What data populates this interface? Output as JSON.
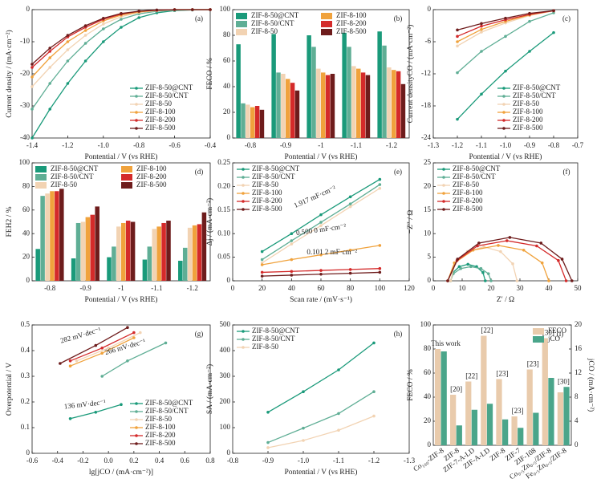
{
  "chart_data": [
    {
      "type": "line",
      "label": "(a)",
      "xlabel": "Pontential / V (vs RHE)",
      "ylabel": "Current density / (mA·cm⁻²)",
      "xlim": [
        -1.4,
        -0.4
      ],
      "xticks": [
        -1.4,
        -1.2,
        {
          "value": -1,
          "label": "-1.0"
        },
        -0.8,
        -0.6,
        -0.4
      ],
      "ylim": [
        -40,
        0
      ],
      "yticks": [
        -40,
        -30,
        -20,
        -10,
        0
      ],
      "legend": "lower right",
      "x": [
        -1.4,
        -1.3,
        -1.2,
        -1.1,
        -1.0,
        -0.9,
        -0.8,
        -0.7,
        -0.6,
        -0.5,
        -0.4
      ],
      "series": [
        {
          "name": "ZIF-8-50@CNT",
          "color": "#1a9a7a",
          "values": [
            -40,
            -31,
            -23,
            -16,
            -10,
            -5.5,
            -2.5,
            -1,
            -0.3,
            -0.1,
            0
          ]
        },
        {
          "name": "ZIF-8-50/CNT",
          "color": "#5fae95",
          "values": [
            -31,
            -23,
            -16,
            -10.5,
            -6,
            -3,
            -1.3,
            -0.5,
            -0.2,
            0,
            0
          ]
        },
        {
          "name": "ZIF-8-50",
          "color": "#f2d3b3",
          "values": [
            -24,
            -18,
            -12.5,
            -8,
            -4.5,
            -2.2,
            -0.9,
            -0.3,
            -0.1,
            0,
            0
          ]
        },
        {
          "name": "ZIF-8-100",
          "color": "#f0a23c",
          "values": [
            -21,
            -15,
            -10,
            -6.5,
            -3.5,
            -1.7,
            -0.7,
            -0.2,
            0,
            0,
            0
          ]
        },
        {
          "name": "ZIF-8-200",
          "color": "#d42a2a",
          "values": [
            -18,
            -13,
            -8.5,
            -5.5,
            -3,
            -1.4,
            -0.5,
            -0.2,
            0,
            0,
            0
          ]
        },
        {
          "name": "ZIF-8-500",
          "color": "#6e1c1c",
          "values": [
            -17,
            -12,
            -8,
            -5,
            -2.7,
            -1.2,
            -0.5,
            -0.1,
            0,
            0,
            0
          ]
        }
      ]
    },
    {
      "type": "bar",
      "label": "(b)",
      "xlabel": "Pontential / V (vs RHE)",
      "ylabel": "FECO / %",
      "categories": [
        "-0.8",
        "-0.9",
        "-1",
        "-1.1",
        "-1.2"
      ],
      "ylim": [
        0,
        100
      ],
      "yticks": [
        0,
        20,
        40,
        60,
        80,
        100
      ],
      "legend": "upper center",
      "legend_columns": 2,
      "series": [
        {
          "name": "ZIF-8-50@CNT",
          "color": "#1a9a7a",
          "values": [
            73,
            81,
            80,
            82,
            83
          ]
        },
        {
          "name": "ZIF-8-50/CNT",
          "color": "#5fae95",
          "values": [
            27,
            51,
            71,
            71,
            72
          ]
        },
        {
          "name": "ZIF-8-50",
          "color": "#f2d3b3",
          "values": [
            26,
            50,
            54,
            56,
            55
          ]
        },
        {
          "name": "ZIF-8-100",
          "color": "#f0a23c",
          "values": [
            24,
            46,
            51,
            54,
            53
          ]
        },
        {
          "name": "ZIF-8-200",
          "color": "#d42a2a",
          "values": [
            25,
            43,
            49,
            51,
            52
          ]
        },
        {
          "name": "ZIF-8-500",
          "color": "#6e1c1c",
          "values": [
            22,
            37,
            50,
            49,
            42
          ]
        }
      ]
    },
    {
      "type": "line",
      "label": "(c)",
      "xlabel": "Pontential / V (vs RHE)",
      "ylabel": "Current densityCO / (mA·cm⁻²)",
      "xlim": [
        -1.3,
        -0.7
      ],
      "xticks": [
        -1.3,
        -1.2,
        -1.1,
        {
          "value": -1,
          "label": "-1.0"
        },
        -0.9,
        -0.8,
        -0.7
      ],
      "ylim": [
        -24,
        0
      ],
      "yticks": [
        -24,
        -18,
        -12,
        -6,
        0
      ],
      "legend": "lower right",
      "x": [
        -1.2,
        -1.1,
        -1.0,
        -0.9,
        -0.8
      ],
      "series": [
        {
          "name": "ZIF-8-50@CNT",
          "color": "#1a9a7a",
          "values": [
            -20.5,
            -15.8,
            -11.5,
            -7.8,
            -4.3
          ]
        },
        {
          "name": "ZIF-8-50/CNT",
          "color": "#5fae95",
          "values": [
            -11.8,
            -7.8,
            -5,
            -2.2,
            -0.6
          ]
        },
        {
          "name": "ZIF-8-50",
          "color": "#f2d3b3",
          "values": [
            -6.8,
            -4.2,
            -2.5,
            -1.1,
            -0.2
          ]
        },
        {
          "name": "ZIF-8-100",
          "color": "#f0a23c",
          "values": [
            -6,
            -3.7,
            -2.2,
            -1,
            -0.2
          ]
        },
        {
          "name": "ZIF-8-200",
          "color": "#d42a2a",
          "values": [
            -5,
            -3.1,
            -1.9,
            -0.9,
            -0.2
          ]
        },
        {
          "name": "ZIF-8-500",
          "color": "#6e1c1c",
          "values": [
            -3.8,
            -2.6,
            -1.6,
            -0.7,
            -0.2
          ]
        }
      ]
    },
    {
      "type": "bar",
      "label": "(d)",
      "xlabel": "Pontential / V (vs RHE)",
      "ylabel": "FEH2 / %",
      "categories": [
        "-0.8",
        "-0.9",
        "-1",
        "-1.1",
        "-1.2"
      ],
      "ylim": [
        0,
        100
      ],
      "yticks": [
        0,
        20,
        40,
        60,
        80,
        100
      ],
      "legend": "upper center",
      "legend_columns": 2,
      "series": [
        {
          "name": "ZIF-8-50@CNT",
          "color": "#1a9a7a",
          "values": [
            27,
            19,
            20,
            18,
            17
          ]
        },
        {
          "name": "ZIF-8-50/CNT",
          "color": "#5fae95",
          "values": [
            72,
            49,
            29,
            29,
            28
          ]
        },
        {
          "name": "ZIF-8-50",
          "color": "#f2d3b3",
          "values": [
            74,
            50,
            46,
            44,
            45
          ]
        },
        {
          "name": "ZIF-8-100",
          "color": "#f0a23c",
          "values": [
            76,
            54,
            49,
            46,
            47
          ]
        },
        {
          "name": "ZIF-8-200",
          "color": "#d42a2a",
          "values": [
            76,
            56,
            51,
            49,
            48
          ]
        },
        {
          "name": "ZIF-8-500",
          "color": "#6e1c1c",
          "values": [
            78,
            63,
            50,
            51,
            58
          ]
        }
      ]
    },
    {
      "type": "line",
      "label": "(e)",
      "xlabel": "Scan rate / (mV·s⁻¹)",
      "ylabel": "Δj / (mA·cm⁻²)",
      "xlim": [
        0,
        120
      ],
      "xticks": [
        0,
        20,
        40,
        60,
        80,
        100,
        120
      ],
      "ylim": [
        0,
        0.25
      ],
      "yticks": [
        0,
        0.05,
        {
          "value": 0.1,
          "label": "0.10"
        },
        0.15,
        {
          "value": 0.2,
          "label": "0.20"
        },
        0.25
      ],
      "legend": "upper left",
      "annotations": [
        "1.917 mF·cm⁻²",
        "0.500 0 mF·cm⁻²",
        "0.101 2 mF·cm⁻²"
      ],
      "x": [
        20,
        40,
        60,
        80,
        100
      ],
      "series": [
        {
          "name": "ZIF-8-50@CNT",
          "color": "#1a9a7a",
          "values": [
            0.062,
            0.1,
            0.14,
            0.178,
            0.215
          ]
        },
        {
          "name": "ZIF-8-50/CNT",
          "color": "#5fae95",
          "values": [
            0.045,
            0.085,
            0.124,
            0.163,
            0.204
          ]
        },
        {
          "name": "ZIF-8-50",
          "color": "#f2d3b3",
          "values": [
            0.038,
            0.078,
            0.117,
            0.157,
            0.196
          ]
        },
        {
          "name": "ZIF-8-100",
          "color": "#f0a23c",
          "values": [
            0.034,
            0.045,
            0.055,
            0.065,
            0.075
          ]
        },
        {
          "name": "ZIF-8-200",
          "color": "#d42a2a",
          "values": [
            0.018,
            0.02,
            0.022,
            0.024,
            0.026
          ]
        },
        {
          "name": "ZIF-8-500",
          "color": "#6e1c1c",
          "values": [
            0.01,
            0.012,
            0.014,
            0.016,
            0.018
          ]
        }
      ]
    },
    {
      "type": "line",
      "label": "(f)",
      "xlabel": "Z′ / Ω",
      "ylabel": "−Z″ / Ω",
      "xlim": [
        0,
        50
      ],
      "xticks": [
        0,
        10,
        20,
        30,
        40,
        50
      ],
      "ylim": [
        0,
        25
      ],
      "yticks": [
        0,
        5,
        10,
        15,
        20,
        25
      ],
      "legend": "upper left",
      "series": [
        {
          "name": "ZIF-8-50@CNT",
          "color": "#1a9a7a",
          "x": [
            6,
            6.8,
            9,
            12,
            15,
            17.2,
            18
          ],
          "values": [
            0,
            1.75,
            3,
            3.5,
            3,
            1.75,
            0
          ]
        },
        {
          "name": "ZIF-8-50/CNT",
          "color": "#5fae95",
          "x": [
            6,
            6.9,
            9.5,
            13,
            16.5,
            19.1,
            20
          ],
          "values": [
            0,
            1.5,
            2.6,
            3,
            2.6,
            1.5,
            0
          ]
        },
        {
          "name": "ZIF-8-50",
          "color": "#f2d3b3",
          "x": [
            6,
            7.5,
            11.8,
            17.5,
            23.3,
            27.5,
            29
          ],
          "values": [
            0,
            3.6,
            6.2,
            7.2,
            6.2,
            3.6,
            0
          ]
        },
        {
          "name": "ZIF-8-100",
          "color": "#f0a23c",
          "x": [
            5,
            7.3,
            13.8,
            22.5,
            31.3,
            37.7,
            40
          ],
          "values": [
            0,
            3.8,
            6.5,
            7.5,
            6.5,
            3.8,
            0
          ]
        },
        {
          "name": "ZIF-8-200",
          "color": "#d42a2a",
          "x": [
            5,
            8.2,
            15.3,
            25.5,
            35.8,
            43.3,
            46
          ],
          "values": [
            0,
            4.3,
            7.4,
            8.5,
            7.4,
            4.3,
            0
          ]
        },
        {
          "name": "ZIF-8-500",
          "color": "#6e1c1c",
          "x": [
            5,
            8.4,
            15.8,
            26.5,
            37.3,
            44.6,
            48
          ],
          "values": [
            0,
            4.6,
            8,
            9.2,
            8,
            4.6,
            0
          ]
        }
      ]
    },
    {
      "type": "line",
      "label": "(g)",
      "xlabel": "lg[jCO / (mA·cm⁻²)]",
      "ylabel": "Overpotential / V",
      "xlim": [
        -0.6,
        0.8
      ],
      "xticks": [
        -0.6,
        -0.4,
        -0.2,
        {
          "value": 0,
          "label": "0.0"
        },
        0.2,
        0.4,
        0.6,
        0.8
      ],
      "ylim": [
        0,
        0.5
      ],
      "yticks": [
        0,
        0.1,
        0.2,
        0.3,
        0.4,
        0.5
      ],
      "legend": "lower right",
      "annotations": [
        "282 mV·dec⁻¹",
        "266 mV·dec⁻¹",
        "136 mV·dec⁻¹"
      ],
      "series": [
        {
          "name": "ZIF-8-50@CNT",
          "color": "#1a9a7a",
          "x": [
            -0.3,
            -0.1,
            0.1
          ],
          "values": [
            0.135,
            0.16,
            0.19
          ]
        },
        {
          "name": "ZIF-8-50/CNT",
          "color": "#5fae95",
          "x": [
            -0.05,
            0.15,
            0.45
          ],
          "values": [
            0.3,
            0.36,
            0.43
          ]
        },
        {
          "name": "ZIF-8-50",
          "color": "#f2d3b3",
          "x": [
            -0.25,
            0,
            0.25
          ],
          "values": [
            0.36,
            0.41,
            0.47
          ]
        },
        {
          "name": "ZIF-8-100",
          "color": "#f0a23c",
          "x": [
            -0.3,
            -0.05,
            0.2
          ],
          "values": [
            0.34,
            0.39,
            0.45
          ]
        },
        {
          "name": "ZIF-8-200",
          "color": "#d42a2a",
          "x": [
            -0.3,
            -0.05,
            0.2
          ],
          "values": [
            0.36,
            0.41,
            0.47
          ]
        },
        {
          "name": "ZIF-8-500",
          "color": "#6e1c1c",
          "x": [
            -0.38,
            -0.1,
            0.15
          ],
          "values": [
            0.35,
            0.42,
            0.49
          ]
        }
      ]
    },
    {
      "type": "line",
      "label": "(h)",
      "xlabel": "Pontential / V (vs RHE)",
      "ylabel": "SA / (mA·cm⁻²)",
      "xlim": [
        -0.8,
        -1.3
      ],
      "xticks": [
        -0.8,
        -0.9,
        {
          "value": -1,
          "label": "-1.0"
        },
        -1.1,
        -1.2,
        -1.3
      ],
      "ylim": [
        0,
        500
      ],
      "yticks": [
        0,
        100,
        200,
        300,
        400,
        500
      ],
      "legend": "upper left",
      "x": [
        -0.9,
        -1.0,
        -1.1,
        -1.2
      ],
      "series": [
        {
          "name": "ZIF-8-50@CNT",
          "color": "#1a9a7a",
          "values": [
            160,
            240,
            325,
            430
          ]
        },
        {
          "name": "ZIF-8-50/CNT",
          "color": "#5fae95",
          "values": [
            42,
            98,
            155,
            240
          ]
        },
        {
          "name": "ZIF-8-50",
          "color": "#f2d3b3",
          "values": [
            22,
            50,
            90,
            145
          ]
        }
      ]
    },
    {
      "type": "bar",
      "label": "(i)",
      "ylabel": "FECO / %",
      "y2label": "jCO / (mA·cm⁻²)",
      "categories": [
        "Co₁₀₀-ZIF-8",
        "ZIF-8",
        "ZIF-7-A-LD",
        "ZIF-A-LD",
        "ZIF-8",
        "ZIF-7",
        "ZIF-108",
        "Co₀.₅Zn₀.₅/ZIF-8",
        "Fe₀.₅Zn₀.₅/ZIF-8"
      ],
      "refs": [
        "This work",
        "[20]",
        "[22]",
        "[22]",
        "[23]",
        "[23]",
        "[23]",
        "[30]",
        "[30]"
      ],
      "ylim": [
        0,
        100
      ],
      "yticks": [
        0,
        20,
        40,
        60,
        80,
        100
      ],
      "y2lim": [
        0,
        20
      ],
      "y2ticks": [
        0,
        4,
        8,
        12,
        16,
        20
      ],
      "legend": "upper right",
      "series": [
        {
          "name": "FECO",
          "color": "#e9cbac",
          "values": [
            80,
            42,
            53,
            91,
            55,
            24,
            63,
            89,
            44
          ]
        },
        {
          "name": "jCO",
          "color": "#4aa58a",
          "axis": "y2",
          "values": [
            15.6,
            3.3,
            5.9,
            6.9,
            4.3,
            2.9,
            5.4,
            11.2,
            9.7
          ]
        }
      ]
    }
  ]
}
